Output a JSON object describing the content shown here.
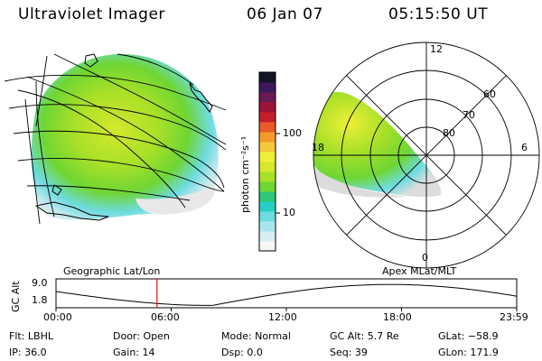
{
  "header": {
    "instrument": "Ultraviolet Imager",
    "date": "06 Jan 07",
    "time": "05:15:50 UT"
  },
  "colorbar": {
    "unit_label": "photon cm⁻²s⁻¹",
    "ticks": [
      {
        "value": 100,
        "label": "100"
      },
      {
        "value": 10,
        "label": "10"
      }
    ],
    "colors": [
      "#f6f6f6",
      "#d8eef2",
      "#a8e6ec",
      "#6edbe0",
      "#26cfc4",
      "#2ec777",
      "#6fd633",
      "#a8e028",
      "#d4e82c",
      "#eef036",
      "#f3c83a",
      "#f39a2a",
      "#e85a2a",
      "#c61f2c",
      "#9c1436",
      "#6a1a52",
      "#3a1a5a",
      "#141428"
    ]
  },
  "polar": {
    "mlt_labels": [
      "12",
      "18",
      "6",
      "0"
    ],
    "lat_labels": [
      "60",
      "70",
      "80"
    ]
  },
  "timeline": {
    "ylabel": "GC Alt",
    "yticks": [
      "9.0",
      "1.8"
    ],
    "left_title": "Geographic Lat/Lon",
    "right_title": "Apex MLat/MLT",
    "xticks": [
      "00:00",
      "06:00",
      "12:00",
      "18:00",
      "23:59"
    ],
    "marker_hour": 5.26
  },
  "info": {
    "flt": "Flt: LBHL",
    "ip": "IP: 36.0",
    "door": "Door: Open",
    "gain": "Gain: 14",
    "mode": "Mode: Normal",
    "dsp": "Dsp:     0.0",
    "gcalt": "GC Alt: 5.7 Re",
    "seq": "Seq: 39",
    "glat": "GLat: −58.9",
    "glon": "GLon: 171.9"
  }
}
